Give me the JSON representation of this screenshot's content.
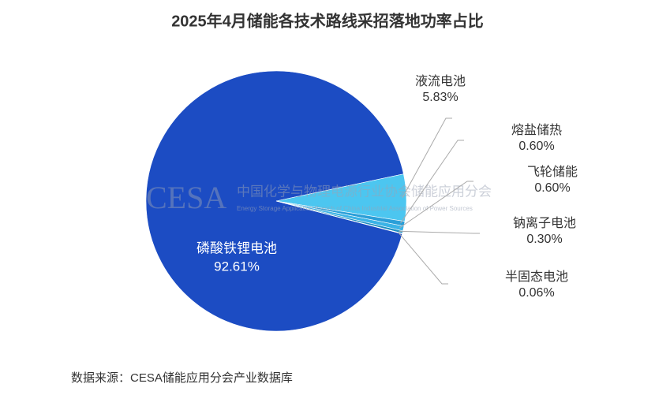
{
  "chart_data": {
    "type": "pie",
    "title": "2025年4月储能各技术路线采招落地功率占比",
    "categories": [
      "磷酸铁锂电池",
      "液流电池",
      "熔盐储热",
      "飞轮储能",
      "钠离子电池",
      "半固态电池"
    ],
    "values": [
      92.61,
      5.83,
      0.6,
      0.6,
      0.3,
      0.06
    ],
    "value_labels": [
      "92.61%",
      "5.83%",
      "0.60%",
      "0.60%",
      "0.30%",
      "0.06%"
    ],
    "colors": [
      "#1c4cc3",
      "#4cc6f0",
      "#2b9fd8",
      "#3bb3e6",
      "#1f8fc2",
      "#2aa6a6"
    ],
    "watermark": {
      "logo": "CESA",
      "name": "中国化学与物理电源行业协会储能应用分会",
      "name_en": "Energy Storage Application Branch of China Industrial Association of Power Sources"
    },
    "source": "数据来源：CESA储能应用分会产业数据库"
  }
}
